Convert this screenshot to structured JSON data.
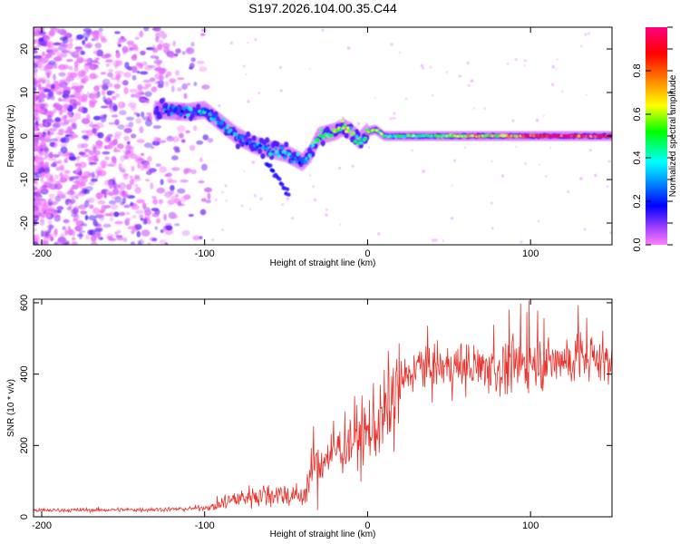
{
  "chart_data": [
    {
      "type": "heatmap",
      "title": "S197.2026.104.00.35.C44",
      "xlabel": "Height of straight line (km)",
      "ylabel": "Frequency (Hz)",
      "xlim": [
        -205,
        150
      ],
      "ylim": [
        -25,
        25
      ],
      "x_ticks": [
        -200,
        -100,
        0,
        100
      ],
      "y_ticks": [
        -20,
        -10,
        0,
        10,
        20
      ],
      "colorbar": {
        "label": "Normalized spectral amplitude",
        "range": [
          0,
          1
        ],
        "ticks": [
          "0.0",
          "0.2",
          "0.4",
          "0.6",
          "0.8"
        ],
        "tick_values": [
          0,
          0.2,
          0.4,
          0.6,
          0.8
        ]
      },
      "ridge": {
        "x": [
          -130,
          -110,
          -100,
          -90,
          -80,
          -70,
          -60,
          -50,
          -40,
          -35,
          -30,
          -20,
          -15,
          -10,
          -5,
          0,
          5,
          10,
          20,
          40,
          60,
          80,
          100,
          120,
          140,
          150
        ],
        "freq_hz": [
          6,
          5.5,
          6,
          3,
          0,
          -2,
          -3,
          -4,
          -6,
          -4,
          0,
          1,
          2,
          1,
          -1,
          1,
          1.5,
          0,
          0,
          0,
          0,
          0,
          0,
          0,
          0,
          0
        ],
        "amplitude": [
          0.2,
          0.25,
          0.3,
          0.3,
          0.3,
          0.25,
          0.3,
          0.3,
          0.3,
          0.35,
          0.45,
          0.55,
          0.6,
          0.5,
          0.45,
          0.6,
          0.55,
          0.45,
          0.45,
          0.5,
          0.55,
          0.6,
          0.8,
          0.85,
          0.8,
          0.75
        ]
      }
    },
    {
      "type": "line",
      "xlabel": "Height of straight line (km)",
      "ylabel": "SNR (10 * v/v)",
      "xlim": [
        -205,
        150
      ],
      "ylim": [
        0,
        610
      ],
      "x_ticks": [
        -200,
        -100,
        0,
        100
      ],
      "y_ticks": [
        0,
        200,
        400,
        600
      ],
      "color": "#e8332d",
      "trend": {
        "x": [
          -205,
          -140,
          -110,
          -95,
          -85,
          -70,
          -55,
          -40,
          -35,
          -30,
          -20,
          -10,
          0,
          10,
          20,
          30,
          40,
          60,
          80,
          100,
          120,
          140,
          150
        ],
        "y": [
          18,
          20,
          22,
          28,
          45,
          60,
          65,
          55,
          110,
          150,
          185,
          215,
          235,
          280,
          370,
          420,
          420,
          420,
          415,
          430,
          440,
          440,
          450
        ]
      }
    }
  ]
}
